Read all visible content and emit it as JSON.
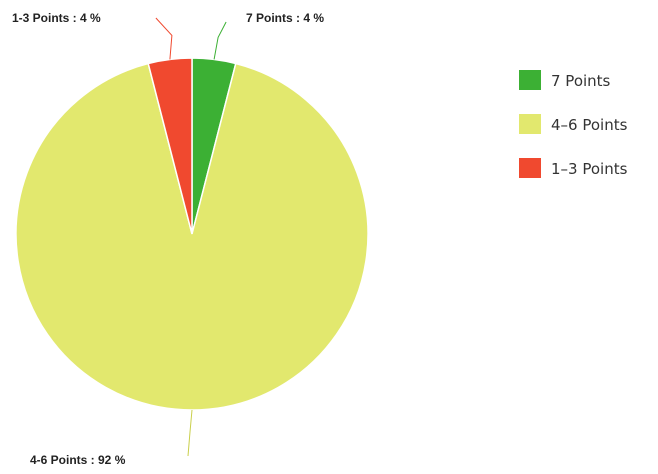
{
  "chart_data": {
    "type": "pie",
    "title": "",
    "slices": [
      {
        "name": "7 Points",
        "value": 4,
        "label": "7 Points : 4 %",
        "color": "#3cb034"
      },
      {
        "name": "4-6 Points",
        "value": 92,
        "label": "4-6 Points : 92 %",
        "color": "#e2e86e"
      },
      {
        "name": "1-3 Points",
        "value": 4,
        "label": "1-3 Points : 4 %",
        "color": "#f0492f"
      }
    ],
    "legend": {
      "position": "right",
      "items": [
        {
          "label": "7 Points",
          "color": "#3cb034"
        },
        {
          "label": "4–6 Points",
          "color": "#e2e86e"
        },
        {
          "label": "1–3 Points",
          "color": "#f0492f"
        }
      ]
    }
  }
}
